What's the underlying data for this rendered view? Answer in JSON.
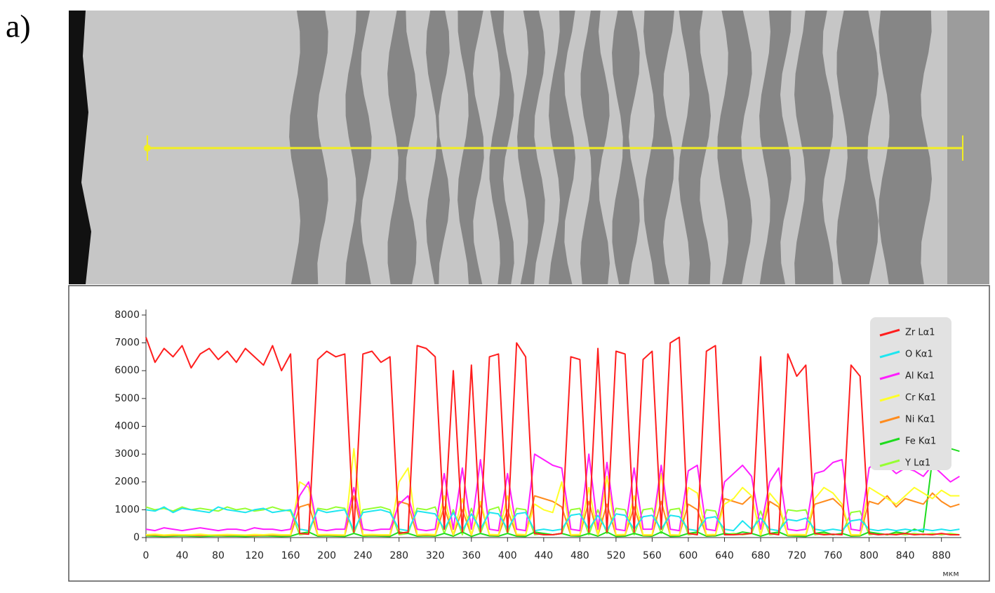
{
  "panel_label": "a)",
  "chart_data": {
    "type": "line",
    "x_label": "мкм",
    "x": [
      0,
      10,
      20,
      30,
      40,
      50,
      60,
      70,
      80,
      90,
      100,
      110,
      120,
      130,
      140,
      150,
      160,
      170,
      180,
      190,
      200,
      210,
      220,
      230,
      240,
      250,
      260,
      270,
      280,
      290,
      300,
      310,
      320,
      330,
      340,
      350,
      360,
      370,
      380,
      390,
      400,
      410,
      420,
      430,
      440,
      450,
      460,
      470,
      480,
      490,
      500,
      510,
      520,
      530,
      540,
      550,
      560,
      570,
      580,
      590,
      600,
      610,
      620,
      630,
      640,
      650,
      660,
      670,
      680,
      690,
      700,
      710,
      720,
      730,
      740,
      750,
      760,
      770,
      780,
      790,
      800,
      810,
      820,
      830,
      840,
      850,
      860,
      870,
      880,
      890,
      900
    ],
    "xlim": [
      0,
      902
    ],
    "xticks": [
      0,
      40,
      80,
      120,
      160,
      200,
      240,
      280,
      320,
      360,
      400,
      440,
      480,
      520,
      560,
      600,
      640,
      680,
      720,
      760,
      800,
      840,
      880
    ],
    "ylim": [
      0,
      8200
    ],
    "yticks": [
      0,
      1000,
      2000,
      3000,
      4000,
      5000,
      6000,
      7000,
      8000
    ],
    "series": [
      {
        "name": "Zr Lα1",
        "color": "#ff1e1e",
        "values": [
          7200,
          6300,
          6800,
          6500,
          6900,
          6100,
          6600,
          6800,
          6400,
          6700,
          6300,
          6800,
          6500,
          6200,
          6900,
          6000,
          6600,
          150,
          120,
          6400,
          6700,
          6500,
          6600,
          200,
          6600,
          6700,
          6300,
          6500,
          150,
          200,
          6900,
          6800,
          6500,
          300,
          6000,
          200,
          6200,
          200,
          6500,
          6600,
          200,
          7000,
          6500,
          150,
          100,
          100,
          150,
          6500,
          6400,
          200,
          6800,
          200,
          6700,
          6600,
          200,
          6400,
          6700,
          300,
          7000,
          7200,
          150,
          100,
          6700,
          6900,
          100,
          100,
          120,
          150,
          6500,
          150,
          100,
          6600,
          5800,
          6200,
          150,
          100,
          120,
          100,
          6200,
          5800,
          150,
          100,
          120,
          100,
          150,
          100,
          120,
          100,
          150,
          100,
          100
        ]
      },
      {
        "name": "O Kα1",
        "color": "#1ee6f0",
        "values": [
          1000,
          950,
          1100,
          900,
          1050,
          1000,
          950,
          900,
          1100,
          1000,
          950,
          900,
          1000,
          1050,
          900,
          950,
          1000,
          300,
          250,
          1000,
          900,
          950,
          1000,
          250,
          900,
          950,
          1000,
          900,
          300,
          250,
          950,
          900,
          850,
          300,
          900,
          250,
          850,
          300,
          900,
          850,
          300,
          850,
          900,
          250,
          300,
          250,
          300,
          800,
          850,
          300,
          800,
          250,
          850,
          800,
          300,
          750,
          800,
          300,
          800,
          750,
          300,
          250,
          700,
          750,
          300,
          250,
          600,
          300,
          700,
          300,
          250,
          650,
          600,
          700,
          300,
          250,
          300,
          250,
          600,
          650,
          300,
          250,
          300,
          250,
          300,
          250,
          300,
          250,
          300,
          250,
          300
        ]
      },
      {
        "name": "Al Kα1",
        "color": "#ff1eff",
        "values": [
          300,
          250,
          350,
          300,
          250,
          300,
          350,
          300,
          250,
          300,
          300,
          250,
          350,
          300,
          300,
          250,
          300,
          1500,
          2000,
          300,
          250,
          300,
          300,
          1800,
          300,
          250,
          300,
          300,
          1200,
          1500,
          300,
          250,
          300,
          2300,
          300,
          2500,
          300,
          2800,
          300,
          250,
          2300,
          300,
          250,
          3000,
          2800,
          2600,
          2500,
          300,
          250,
          3000,
          300,
          2700,
          300,
          250,
          2500,
          300,
          300,
          2600,
          300,
          250,
          2400,
          2600,
          300,
          250,
          2000,
          2300,
          2600,
          2200,
          300,
          2000,
          2500,
          300,
          250,
          300,
          2300,
          2400,
          2700,
          2800,
          300,
          250,
          2500,
          2800,
          2600,
          2300,
          2500,
          2400,
          2200,
          2600,
          2300,
          2000,
          2200
        ]
      },
      {
        "name": "Cr Kα1",
        "color": "#ffff28",
        "values": [
          100,
          120,
          90,
          110,
          100,
          100,
          120,
          90,
          100,
          110,
          100,
          90,
          110,
          100,
          120,
          100,
          100,
          2000,
          1800,
          100,
          110,
          100,
          90,
          3200,
          100,
          110,
          100,
          100,
          2000,
          2500,
          100,
          120,
          100,
          1500,
          100,
          1400,
          100,
          1300,
          110,
          100,
          1500,
          120,
          100,
          1200,
          1000,
          900,
          2000,
          100,
          110,
          1800,
          100,
          2200,
          100,
          110,
          1500,
          100,
          100,
          2300,
          100,
          90,
          1800,
          1600,
          100,
          110,
          1200,
          1400,
          1800,
          1500,
          100,
          1600,
          1200,
          100,
          110,
          100,
          1400,
          1800,
          1600,
          1200,
          100,
          100,
          1800,
          1600,
          1400,
          1200,
          1500,
          1800,
          1600,
          1400,
          1700,
          1500,
          1500
        ]
      },
      {
        "name": "Ni Kα1",
        "color": "#ff8c1e",
        "values": [
          80,
          90,
          70,
          80,
          90,
          80,
          70,
          90,
          80,
          80,
          90,
          80,
          70,
          80,
          90,
          80,
          80,
          1100,
          1200,
          80,
          90,
          80,
          80,
          1500,
          80,
          90,
          80,
          80,
          1300,
          1200,
          80,
          90,
          80,
          1100,
          80,
          1000,
          80,
          1200,
          90,
          80,
          1000,
          80,
          90,
          1500,
          1400,
          1300,
          1100,
          80,
          90,
          1300,
          80,
          1200,
          80,
          90,
          1100,
          80,
          80,
          1300,
          80,
          90,
          1200,
          1000,
          80,
          90,
          1400,
          1300,
          1200,
          1500,
          80,
          1300,
          1100,
          80,
          90,
          80,
          1200,
          1300,
          1400,
          1100,
          80,
          90,
          1300,
          1200,
          1500,
          1100,
          1400,
          1300,
          1200,
          1600,
          1300,
          1100,
          1200
        ]
      },
      {
        "name": "Fe Kα1",
        "color": "#1edc1e",
        "values": [
          60,
          50,
          40,
          50,
          60,
          50,
          40,
          50,
          60,
          50,
          50,
          40,
          50,
          60,
          50,
          40,
          50,
          150,
          200,
          50,
          60,
          50,
          40,
          150,
          50,
          60,
          50,
          40,
          200,
          150,
          50,
          60,
          50,
          150,
          50,
          200,
          40,
          150,
          60,
          50,
          150,
          50,
          40,
          200,
          150,
          100,
          150,
          60,
          50,
          150,
          50,
          200,
          40,
          50,
          150,
          60,
          50,
          200,
          40,
          50,
          150,
          200,
          50,
          60,
          150,
          100,
          200,
          150,
          50,
          150,
          200,
          60,
          50,
          40,
          150,
          200,
          100,
          150,
          50,
          60,
          200,
          150,
          100,
          200,
          150,
          300,
          200,
          2800,
          3000,
          3200,
          3100
        ]
      },
      {
        "name": "Y Lα1",
        "color": "#96ff32",
        "values": [
          1100,
          1000,
          1050,
          950,
          1100,
          1000,
          1050,
          1000,
          950,
          1100,
          1000,
          1050,
          950,
          1000,
          1100,
          1000,
          950,
          100,
          150,
          1050,
          1000,
          1100,
          1050,
          150,
          1000,
          1050,
          1100,
          1000,
          100,
          150,
          1050,
          1000,
          1100,
          150,
          1000,
          100,
          1050,
          150,
          1000,
          1100,
          150,
          1050,
          1000,
          100,
          150,
          100,
          150,
          1000,
          1050,
          100,
          1000,
          150,
          1050,
          1000,
          100,
          1000,
          1050,
          150,
          1000,
          1050,
          100,
          150,
          1000,
          950,
          100,
          150,
          100,
          150,
          950,
          100,
          150,
          1000,
          950,
          1000,
          100,
          150,
          100,
          150,
          900,
          950,
          100,
          150,
          100,
          150,
          100,
          150,
          100,
          150,
          100,
          150,
          100
        ]
      }
    ]
  }
}
